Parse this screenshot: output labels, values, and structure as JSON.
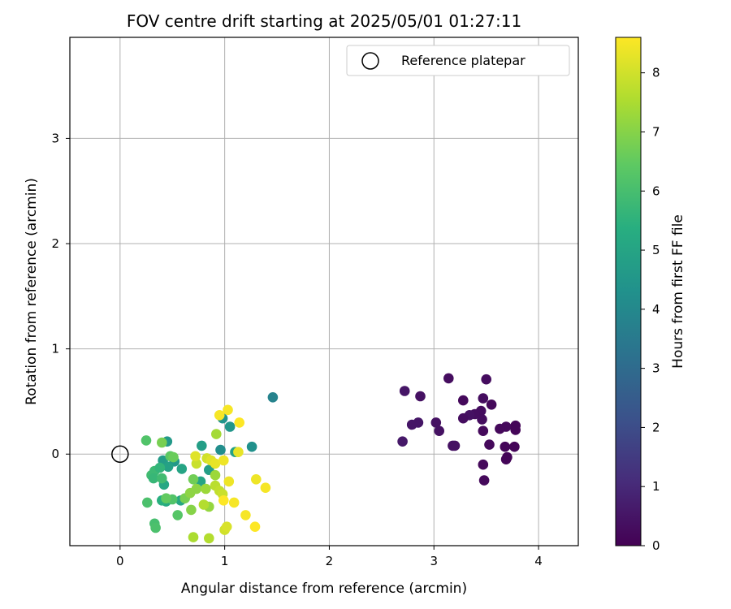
{
  "chart_data": {
    "type": "scatter",
    "title": "FOV centre drift starting at 2025/05/01 01:27:11",
    "xlabel": "Angular distance from reference (arcmin)",
    "ylabel": "Rotation from reference (arcmin)",
    "xlim": [
      -0.48,
      4.38
    ],
    "ylim": [
      -0.87,
      3.96
    ],
    "xticks": [
      "0",
      "1",
      "2",
      "3",
      "4"
    ],
    "yticks": [
      "0",
      "1",
      "2",
      "3"
    ],
    "grid": true,
    "legend": {
      "position": "top-right",
      "entries": [
        {
          "label": "Reference platepar",
          "marker": "open-circle"
        }
      ]
    },
    "reference_point": {
      "x": 0,
      "y": 0
    },
    "colorbar": {
      "label": "Hours from first FF file",
      "range": [
        0,
        8.6
      ],
      "ticks": [
        "0",
        "1",
        "2",
        "3",
        "4",
        "5",
        "6",
        "7",
        "8"
      ],
      "colormap": "viridis"
    },
    "points": [
      {
        "x": 3.14,
        "y": 0.72,
        "c": 0.3
      },
      {
        "x": 3.5,
        "y": 0.71,
        "c": 0.3
      },
      {
        "x": 2.72,
        "y": 0.6,
        "c": 0.5
      },
      {
        "x": 2.87,
        "y": 0.55,
        "c": 0.4
      },
      {
        "x": 3.47,
        "y": 0.53,
        "c": 0.3
      },
      {
        "x": 3.28,
        "y": 0.51,
        "c": 0.2
      },
      {
        "x": 3.55,
        "y": 0.47,
        "c": 0.2
      },
      {
        "x": 3.45,
        "y": 0.41,
        "c": 0.3
      },
      {
        "x": 3.39,
        "y": 0.38,
        "c": 0.3
      },
      {
        "x": 3.34,
        "y": 0.37,
        "c": 0.4
      },
      {
        "x": 3.28,
        "y": 0.34,
        "c": 0.3
      },
      {
        "x": 3.46,
        "y": 0.33,
        "c": 0.3
      },
      {
        "x": 2.85,
        "y": 0.3,
        "c": 0.5
      },
      {
        "x": 3.02,
        "y": 0.3,
        "c": 0.4
      },
      {
        "x": 2.79,
        "y": 0.28,
        "c": 0.5
      },
      {
        "x": 3.78,
        "y": 0.27,
        "c": 0.1
      },
      {
        "x": 3.69,
        "y": 0.26,
        "c": 0.2
      },
      {
        "x": 3.63,
        "y": 0.24,
        "c": 0.2
      },
      {
        "x": 3.78,
        "y": 0.23,
        "c": 0.1
      },
      {
        "x": 3.47,
        "y": 0.22,
        "c": 0.2
      },
      {
        "x": 3.05,
        "y": 0.22,
        "c": 0.4
      },
      {
        "x": 2.7,
        "y": 0.12,
        "c": 0.6
      },
      {
        "x": 3.53,
        "y": 0.09,
        "c": 0.2
      },
      {
        "x": 3.18,
        "y": 0.08,
        "c": 0.4
      },
      {
        "x": 3.2,
        "y": 0.08,
        "c": 0.4
      },
      {
        "x": 3.68,
        "y": 0.07,
        "c": 0.1
      },
      {
        "x": 3.77,
        "y": 0.07,
        "c": 0.1
      },
      {
        "x": 3.7,
        "y": -0.03,
        "c": 0.1
      },
      {
        "x": 3.69,
        "y": -0.05,
        "c": 0.1
      },
      {
        "x": 3.47,
        "y": -0.1,
        "c": 0.2
      },
      {
        "x": 3.48,
        "y": -0.25,
        "c": 0.2
      },
      {
        "x": 1.46,
        "y": 0.54,
        "c": 3.8
      },
      {
        "x": 0.98,
        "y": 0.34,
        "c": 4.4
      },
      {
        "x": 1.05,
        "y": 0.26,
        "c": 4.5
      },
      {
        "x": 0.45,
        "y": 0.12,
        "c": 4.6
      },
      {
        "x": 1.26,
        "y": 0.07,
        "c": 4.3
      },
      {
        "x": 0.78,
        "y": 0.08,
        "c": 4.8
      },
      {
        "x": 0.96,
        "y": 0.04,
        "c": 4.2
      },
      {
        "x": 1.1,
        "y": 0.02,
        "c": 4.9
      },
      {
        "x": 0.41,
        "y": -0.06,
        "c": 4.7
      },
      {
        "x": 0.52,
        "y": -0.07,
        "c": 4.6
      },
      {
        "x": 0.46,
        "y": -0.12,
        "c": 4.9
      },
      {
        "x": 0.59,
        "y": -0.14,
        "c": 5.0
      },
      {
        "x": 0.85,
        "y": -0.15,
        "c": 4.8
      },
      {
        "x": 0.42,
        "y": -0.29,
        "c": 5.1
      },
      {
        "x": 0.77,
        "y": -0.26,
        "c": 5.0
      },
      {
        "x": 0.58,
        "y": -0.44,
        "c": 5.1
      },
      {
        "x": 0.44,
        "y": -0.45,
        "c": 5.2
      },
      {
        "x": 0.4,
        "y": -0.44,
        "c": 5.4
      },
      {
        "x": 0.25,
        "y": 0.13,
        "c": 6.2
      },
      {
        "x": 0.3,
        "y": -0.2,
        "c": 5.9
      },
      {
        "x": 0.33,
        "y": -0.16,
        "c": 5.8
      },
      {
        "x": 0.38,
        "y": -0.13,
        "c": 5.6
      },
      {
        "x": 0.32,
        "y": -0.23,
        "c": 5.7
      },
      {
        "x": 0.4,
        "y": -0.23,
        "c": 5.9
      },
      {
        "x": 0.26,
        "y": -0.46,
        "c": 6.1
      },
      {
        "x": 0.33,
        "y": -0.66,
        "c": 6.0
      },
      {
        "x": 0.34,
        "y": -0.7,
        "c": 6.1
      },
      {
        "x": 0.55,
        "y": -0.58,
        "c": 6.3
      },
      {
        "x": 0.5,
        "y": -0.43,
        "c": 6.2
      },
      {
        "x": 0.48,
        "y": -0.02,
        "c": 6.4
      },
      {
        "x": 0.51,
        "y": -0.03,
        "c": 6.6
      },
      {
        "x": 0.4,
        "y": 0.11,
        "c": 6.8
      },
      {
        "x": 0.44,
        "y": -0.42,
        "c": 6.5
      },
      {
        "x": 0.62,
        "y": -0.42,
        "c": 6.8
      },
      {
        "x": 0.68,
        "y": -0.53,
        "c": 7.0
      },
      {
        "x": 0.7,
        "y": -0.24,
        "c": 6.7
      },
      {
        "x": 0.67,
        "y": -0.37,
        "c": 7.1
      },
      {
        "x": 0.73,
        "y": -0.33,
        "c": 7.1
      },
      {
        "x": 0.82,
        "y": -0.33,
        "c": 7.3
      },
      {
        "x": 0.91,
        "y": -0.2,
        "c": 7.3
      },
      {
        "x": 0.92,
        "y": 0.19,
        "c": 7.4
      },
      {
        "x": 0.85,
        "y": -0.5,
        "c": 7.2
      },
      {
        "x": 0.8,
        "y": -0.48,
        "c": 7.6
      },
      {
        "x": 0.7,
        "y": -0.79,
        "c": 7.5
      },
      {
        "x": 0.85,
        "y": -0.8,
        "c": 7.6
      },
      {
        "x": 0.91,
        "y": -0.3,
        "c": 7.7
      },
      {
        "x": 0.95,
        "y": -0.35,
        "c": 7.8
      },
      {
        "x": 0.98,
        "y": -0.38,
        "c": 7.9
      },
      {
        "x": 1.0,
        "y": -0.72,
        "c": 8.0
      },
      {
        "x": 1.02,
        "y": -0.69,
        "c": 8.1
      },
      {
        "x": 0.73,
        "y": -0.09,
        "c": 7.9
      },
      {
        "x": 0.83,
        "y": -0.04,
        "c": 8.0
      },
      {
        "x": 0.87,
        "y": -0.06,
        "c": 8.2
      },
      {
        "x": 0.91,
        "y": -0.09,
        "c": 8.3
      },
      {
        "x": 0.99,
        "y": -0.06,
        "c": 8.4
      },
      {
        "x": 0.72,
        "y": -0.02,
        "c": 8.2
      },
      {
        "x": 0.95,
        "y": 0.37,
        "c": 8.5
      },
      {
        "x": 1.03,
        "y": 0.42,
        "c": 8.5
      },
      {
        "x": 1.14,
        "y": 0.3,
        "c": 8.6
      },
      {
        "x": 1.13,
        "y": 0.02,
        "c": 8.3
      },
      {
        "x": 1.04,
        "y": -0.26,
        "c": 8.4
      },
      {
        "x": 1.09,
        "y": -0.46,
        "c": 8.5
      },
      {
        "x": 0.99,
        "y": -0.44,
        "c": 8.6
      },
      {
        "x": 1.3,
        "y": -0.24,
        "c": 8.4
      },
      {
        "x": 1.39,
        "y": -0.32,
        "c": 8.5
      },
      {
        "x": 1.2,
        "y": -0.58,
        "c": 8.5
      },
      {
        "x": 1.29,
        "y": -0.69,
        "c": 8.6
      }
    ]
  }
}
